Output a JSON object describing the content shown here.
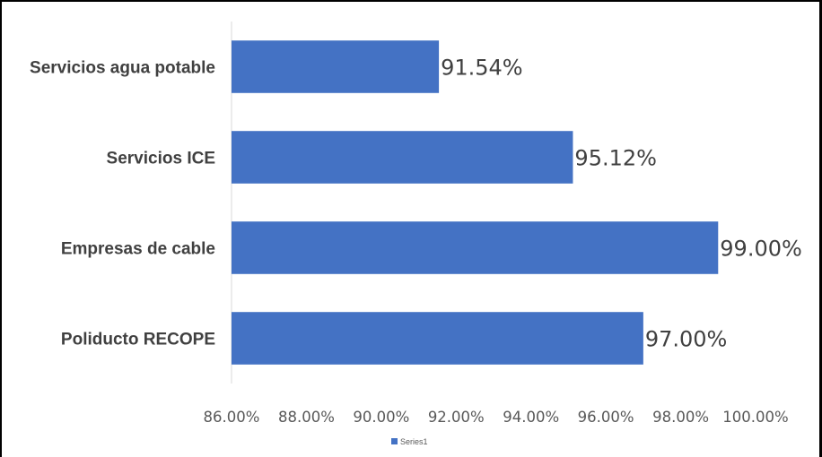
{
  "chart_data": {
    "type": "bar",
    "orientation": "horizontal",
    "categories": [
      "Servicios agua potable",
      "Servicios ICE",
      "Empresas de cable",
      "Poliducto RECOPE"
    ],
    "series": [
      {
        "name": "Series1",
        "values": [
          91.54,
          95.12,
          99.0,
          97.0
        ],
        "color": "#4472C4"
      }
    ],
    "data_labels": [
      "91.54%",
      "95.12%",
      "99.00%",
      "97.00%"
    ],
    "xlim": [
      86,
      100
    ],
    "x_ticks": [
      86,
      88,
      90,
      92,
      94,
      96,
      98,
      100
    ],
    "x_tick_labels": [
      "86.00%",
      "88.00%",
      "90.00%",
      "92.00%",
      "94.00%",
      "96.00%",
      "98.00%",
      "100.00%"
    ],
    "grid": true,
    "legend": {
      "position": "bottom",
      "entries": [
        "Series1"
      ]
    }
  }
}
